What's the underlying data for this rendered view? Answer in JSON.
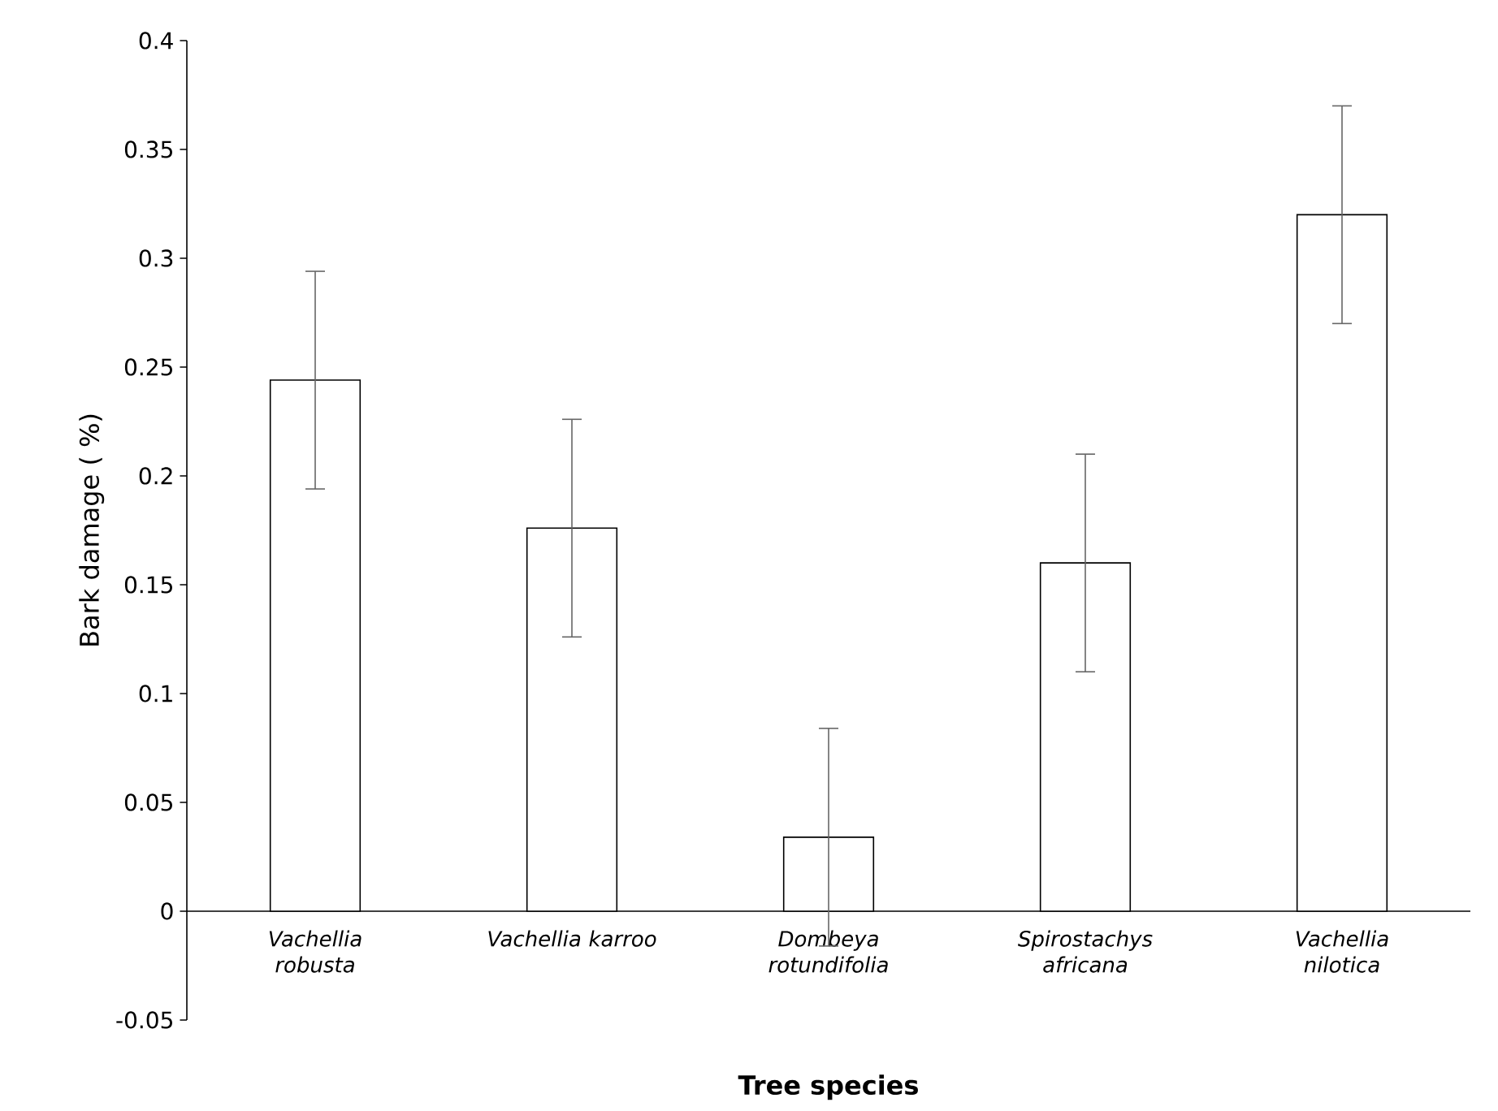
{
  "chart_data": {
    "type": "bar",
    "xlabel": "Tree species",
    "ylabel": "Bark damage ( %)",
    "categories": [
      "Vachellia robusta",
      "Vachellia karroo",
      "Dombeya rotundifolia",
      "Spirostachys africana",
      "Vachellia nilotica"
    ],
    "values": [
      0.244,
      0.176,
      0.034,
      0.16,
      0.32
    ],
    "errors": [
      0.05,
      0.05,
      0.05,
      0.05,
      0.05
    ],
    "color": "#ffffff",
    "ylim": [
      -0.05,
      0.4
    ],
    "yticks": [
      -0.05,
      0,
      0.05,
      0.1,
      0.15,
      0.2,
      0.25,
      0.3,
      0.35,
      0.4
    ],
    "grid": false
  }
}
